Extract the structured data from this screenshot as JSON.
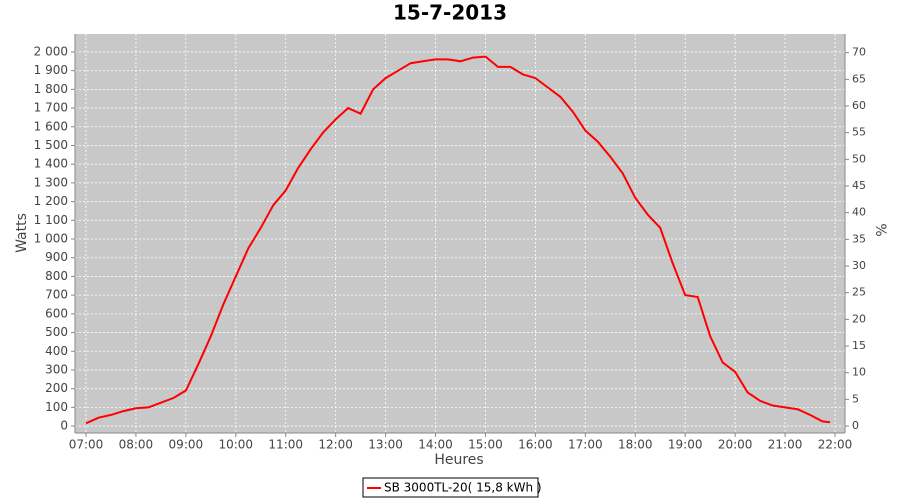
{
  "chart_data": {
    "type": "line",
    "title": "15-7-2013",
    "x_label": "Heures",
    "y_label": "Watts",
    "y2_label": "%",
    "x": [
      7.0,
      7.25,
      7.5,
      7.75,
      8.0,
      8.25,
      8.5,
      8.75,
      9.0,
      9.25,
      9.5,
      9.75,
      10.0,
      10.25,
      10.5,
      10.75,
      11.0,
      11.25,
      11.5,
      11.75,
      12.0,
      12.25,
      12.5,
      12.75,
      13.0,
      13.25,
      13.5,
      13.75,
      14.0,
      14.25,
      14.5,
      14.75,
      15.0,
      15.25,
      15.5,
      15.75,
      16.0,
      16.25,
      16.5,
      16.75,
      17.0,
      17.25,
      17.5,
      17.75,
      18.0,
      18.25,
      18.5,
      18.75,
      19.0,
      19.25,
      19.5,
      19.75,
      20.0,
      20.25,
      20.5,
      20.75,
      21.0,
      21.25,
      21.5,
      21.75,
      21.9
    ],
    "series": [
      {
        "name": "SB 3000TL-20( 15,8 kWh )",
        "color": "#ff0000",
        "values": [
          15,
          45,
          60,
          80,
          95,
          100,
          125,
          150,
          190,
          330,
          480,
          650,
          800,
          950,
          1060,
          1180,
          1260,
          1380,
          1480,
          1570,
          1640,
          1700,
          1670,
          1800,
          1860,
          1900,
          1940,
          1950,
          1960,
          1960,
          1950,
          1970,
          1975,
          1920,
          1920,
          1880,
          1860,
          1810,
          1760,
          1680,
          1580,
          1520,
          1440,
          1350,
          1220,
          1130,
          1060,
          870,
          700,
          690,
          480,
          340,
          290,
          180,
          135,
          110,
          100,
          90,
          60,
          25,
          20
        ]
      }
    ],
    "xlim": [
      6.78,
      22.2
    ],
    "xticks": [
      {
        "value": 7,
        "label": "07:00"
      },
      {
        "value": 8,
        "label": "08:00"
      },
      {
        "value": 9,
        "label": "09:00"
      },
      {
        "value": 10,
        "label": "10:00"
      },
      {
        "value": 11,
        "label": "11:00"
      },
      {
        "value": 12,
        "label": "12:00"
      },
      {
        "value": 13,
        "label": "13:00"
      },
      {
        "value": 14,
        "label": "14:00"
      },
      {
        "value": 15,
        "label": "15:00"
      },
      {
        "value": 16,
        "label": "16:00"
      },
      {
        "value": 17,
        "label": "17:00"
      },
      {
        "value": 18,
        "label": "18:00"
      },
      {
        "value": 19,
        "label": "19:00"
      },
      {
        "value": 20,
        "label": "20:00"
      },
      {
        "value": 21,
        "label": "21:00"
      },
      {
        "value": 22,
        "label": "22:00"
      }
    ],
    "ylim": [
      -37,
      2096
    ],
    "yticks": [
      0,
      100,
      200,
      300,
      400,
      500,
      600,
      700,
      800,
      900,
      {
        "value": 1000,
        "label": "1 000"
      },
      {
        "value": 1100,
        "label": "1 100"
      },
      {
        "value": 1200,
        "label": "1 200"
      },
      {
        "value": 1300,
        "label": "1 300"
      },
      {
        "value": 1400,
        "label": "1 400"
      },
      {
        "value": 1500,
        "label": "1 500"
      },
      {
        "value": 1600,
        "label": "1 600"
      },
      {
        "value": 1700,
        "label": "1 700"
      },
      {
        "value": 1800,
        "label": "1 800"
      },
      {
        "value": 1900,
        "label": "1 900"
      },
      {
        "value": 2000,
        "label": "2 000"
      }
    ],
    "y2lim": [
      -1.3,
      73.5
    ],
    "y2ticks": [
      0,
      5,
      10,
      15,
      20,
      25,
      30,
      35,
      40,
      45,
      50,
      55,
      60,
      65,
      70
    ],
    "grid": true,
    "legend": "bottom"
  }
}
